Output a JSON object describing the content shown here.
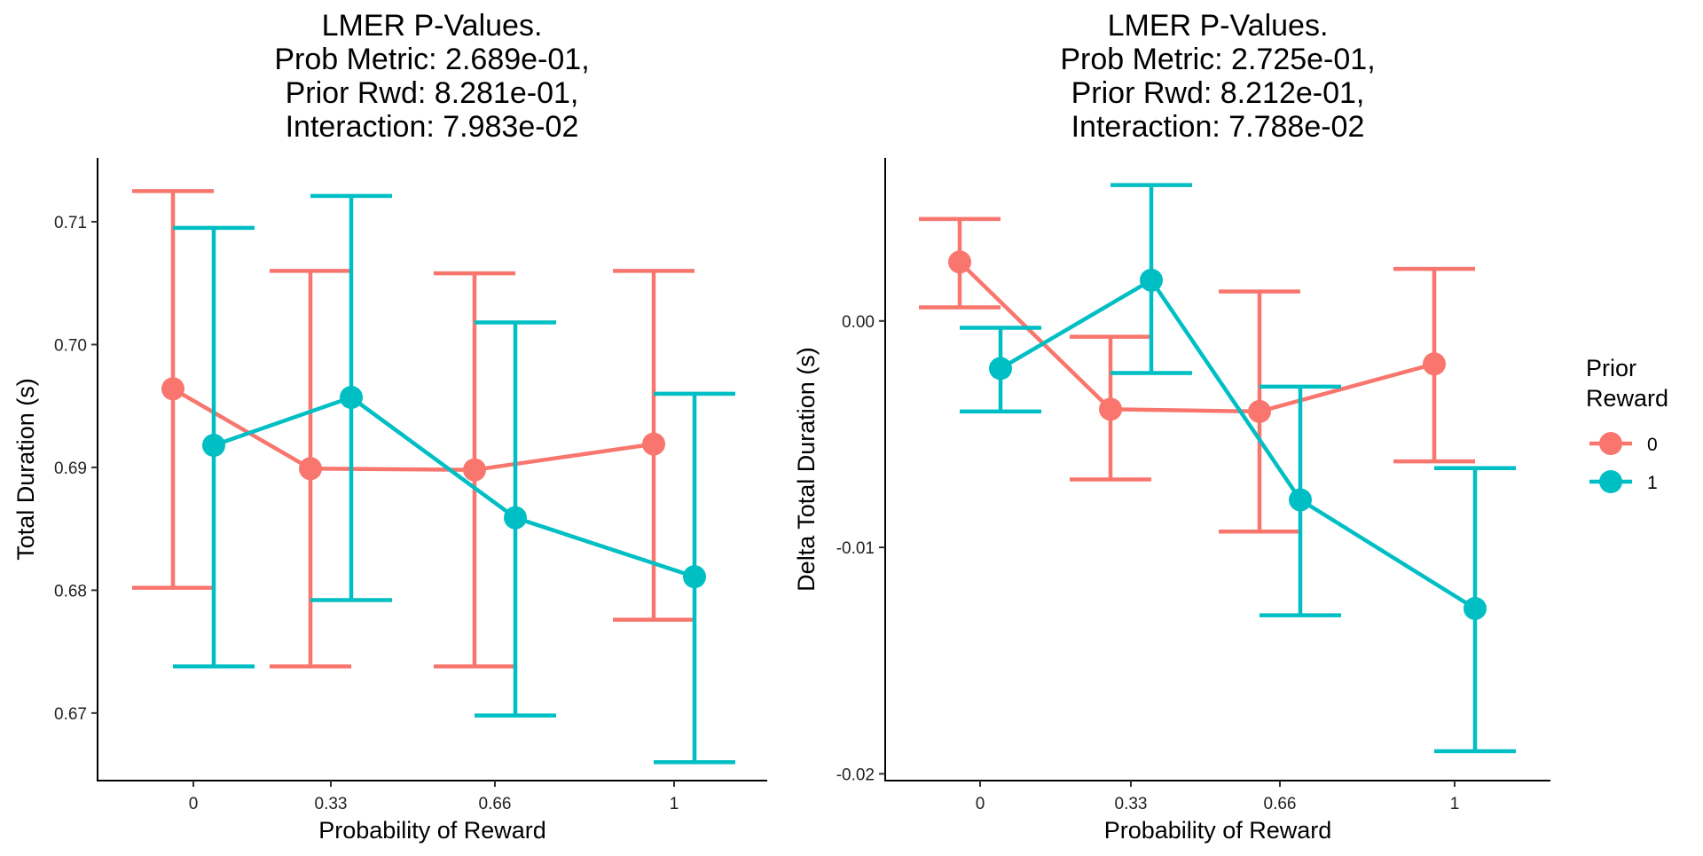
{
  "colors": {
    "reward_0": "#F8766D",
    "reward_1": "#00BFC4",
    "axis": "#000000"
  },
  "legend": {
    "title_line1": "Prior",
    "title_line2": "Reward",
    "items": [
      {
        "label": "0",
        "color": "#F8766D"
      },
      {
        "label": "1",
        "color": "#00BFC4"
      }
    ]
  },
  "chart_data": [
    {
      "type": "line",
      "title_lines": [
        "LMER P-Values.",
        "Prob Metric: 2.689e-01,",
        "Prior Rwd: 8.281e-01,",
        "Interaction: 7.983e-02"
      ],
      "xlabel": "Probability of Reward",
      "ylabel": "Total Duration (s)",
      "categories": [
        "0",
        "0.33",
        "0.66",
        "1"
      ],
      "ylim": [
        0.6645,
        0.7152
      ],
      "yticks": [
        0.67,
        0.68,
        0.69,
        0.7,
        0.71
      ],
      "ytick_labels": [
        "0.67",
        "0.68",
        "0.69",
        "0.70",
        "0.71"
      ],
      "series": [
        {
          "name": "0",
          "color": "#F8766D",
          "values": [
            0.6964,
            0.6899,
            0.6898,
            0.6919
          ],
          "err_low": [
            0.6802,
            0.6738,
            0.6738,
            0.6776
          ],
          "err_high": [
            0.7125,
            0.706,
            0.7058,
            0.706
          ]
        },
        {
          "name": "1",
          "color": "#00BFC4",
          "values": [
            0.6918,
            0.6957,
            0.6859,
            0.6811
          ],
          "err_low": [
            0.6738,
            0.6792,
            0.6698,
            0.666
          ],
          "err_high": [
            0.7095,
            0.7121,
            0.7018,
            0.696
          ]
        }
      ]
    },
    {
      "type": "line",
      "title_lines": [
        "LMER P-Values.",
        "Prob Metric: 2.725e-01,",
        "Prior Rwd: 8.212e-01,",
        "Interaction: 7.788e-02"
      ],
      "xlabel": "Probability of Reward",
      "ylabel": "Delta Total Duration (s)",
      "categories": [
        "0",
        "0.33",
        "0.66",
        "1"
      ],
      "ylim": [
        -0.0203,
        0.0072
      ],
      "yticks": [
        -0.02,
        -0.01,
        0.0
      ],
      "ytick_labels": [
        "-0.02",
        "-0.01",
        "0.00"
      ],
      "series": [
        {
          "name": "0",
          "color": "#F8766D",
          "values": [
            0.0026,
            -0.0039,
            -0.004,
            -0.0019
          ],
          "err_low": [
            0.0006,
            -0.007,
            -0.0093,
            -0.0062
          ],
          "err_high": [
            0.0045,
            -0.0007,
            0.0013,
            0.0023
          ]
        },
        {
          "name": "1",
          "color": "#00BFC4",
          "values": [
            -0.0021,
            0.0018,
            -0.0079,
            -0.0127
          ],
          "err_low": [
            -0.004,
            -0.0023,
            -0.013,
            -0.019
          ],
          "err_high": [
            -0.0003,
            0.006,
            -0.0029,
            -0.0065
          ]
        }
      ]
    }
  ]
}
